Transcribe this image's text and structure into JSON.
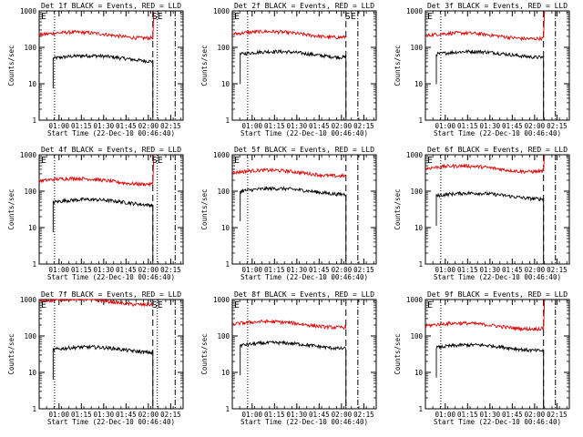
{
  "figure": {
    "ylabel": "Counts/sec",
    "xlabel": "Start Time (22-Dec-10 00:46:40)",
    "x_tick_labels": [
      "01:00",
      "01:15",
      "01:30",
      "01:45",
      "02:00",
      "02:15"
    ],
    "y_tick_labels": [
      "1",
      "10",
      "100",
      "1000"
    ],
    "colors": {
      "events": "#000000",
      "lld": "#e00000"
    }
  },
  "chart_data": [
    {
      "type": "line",
      "title": "Det 1f BLACK = Events, RED = LLD",
      "marker_left": "E",
      "marker_right": "SE",
      "y_scale": "log",
      "ylim": [
        1,
        1000
      ],
      "xlim": [
        "00:46:40",
        "02:23:20"
      ],
      "x_ticks": [
        "01:00",
        "01:15",
        "01:30",
        "01:45",
        "02:00",
        "02:15"
      ],
      "series": [
        {
          "name": "Events",
          "color": "#000000",
          "start": "00:56",
          "end": "02:03",
          "level": 50
        },
        {
          "name": "LLD",
          "color": "#e00000",
          "start": "00:46:40",
          "end": "02:03",
          "level": 220,
          "rise_to": 1000
        }
      ],
      "dotted_lines": [
        "00:57",
        "02:06"
      ],
      "dashed_lines": [
        "02:03",
        "02:18"
      ]
    },
    {
      "type": "line",
      "title": "Det 2f BLACK = Events, RED = LLD",
      "marker_left": "E",
      "marker_right": "SE",
      "y_scale": "log",
      "ylim": [
        1,
        1000
      ],
      "xlim": [
        "00:46:40",
        "02:23:20"
      ],
      "x_ticks": [
        "01:00",
        "01:15",
        "01:30",
        "01:45",
        "02:00",
        "02:15"
      ],
      "series": [
        {
          "name": "Events",
          "color": "#000000",
          "start": "00:52",
          "end": "02:03",
          "level": 65
        },
        {
          "name": "LLD",
          "color": "#e00000",
          "start": "00:46:40",
          "end": "02:03",
          "level": 230
        }
      ],
      "dotted_lines": [
        "00:57"
      ],
      "dashed_lines": [
        "02:03",
        "02:11"
      ]
    },
    {
      "type": "line",
      "title": "Det 3f BLACK = Events, RED = LLD",
      "marker_left": "E",
      "marker_right": "",
      "y_scale": "log",
      "ylim": [
        1,
        1000
      ],
      "xlim": [
        "00:46:40",
        "02:23:20"
      ],
      "x_ticks": [
        "01:00",
        "01:15",
        "01:30",
        "01:45",
        "02:00",
        "02:15"
      ],
      "series": [
        {
          "name": "Events",
          "color": "#000000",
          "start": "00:54",
          "end": "02:06",
          "level": 65
        },
        {
          "name": "LLD",
          "color": "#e00000",
          "start": "00:46:40",
          "end": "02:06",
          "level": 210,
          "rise_to": 1000
        }
      ],
      "dotted_lines": [
        "00:57"
      ],
      "dashed_lines": [
        "02:06",
        "02:14"
      ]
    },
    {
      "type": "line",
      "title": "Det 4f BLACK = Events, RED = LLD",
      "marker_left": "E",
      "marker_right": "SE",
      "y_scale": "log",
      "ylim": [
        1,
        1000
      ],
      "xlim": [
        "00:46:40",
        "02:23:20"
      ],
      "x_ticks": [
        "01:00",
        "01:15",
        "01:30",
        "01:45",
        "02:00",
        "02:15"
      ],
      "series": [
        {
          "name": "Events",
          "color": "#000000",
          "start": "00:56",
          "end": "02:03",
          "level": 50
        },
        {
          "name": "LLD",
          "color": "#e00000",
          "start": "00:46:40",
          "end": "02:03",
          "level": 190,
          "rise_to": 1000
        }
      ],
      "dotted_lines": [
        "00:57",
        "02:06"
      ],
      "dashed_lines": [
        "02:03",
        "02:18"
      ]
    },
    {
      "type": "line",
      "title": "Det 5f BLACK = Events, RED = LLD",
      "marker_left": "E",
      "marker_right": "",
      "y_scale": "log",
      "ylim": [
        1,
        1000
      ],
      "xlim": [
        "00:46:40",
        "02:23:20"
      ],
      "x_ticks": [
        "01:00",
        "01:15",
        "01:30",
        "01:45",
        "02:00",
        "02:15"
      ],
      "series": [
        {
          "name": "Events",
          "color": "#000000",
          "start": "00:52",
          "end": "02:03",
          "level": 100
        },
        {
          "name": "LLD",
          "color": "#e00000",
          "start": "00:46:40",
          "end": "02:03",
          "level": 320
        }
      ],
      "dotted_lines": [
        "00:57"
      ],
      "dashed_lines": [
        "02:03",
        "02:11"
      ]
    },
    {
      "type": "line",
      "title": "Det 6f BLACK = Events, RED = LLD",
      "marker_left": "E",
      "marker_right": "",
      "y_scale": "log",
      "ylim": [
        1,
        1000
      ],
      "xlim": [
        "00:46:40",
        "02:23:20"
      ],
      "x_ticks": [
        "01:00",
        "01:15",
        "01:30",
        "01:45",
        "02:00",
        "02:15"
      ],
      "series": [
        {
          "name": "Events",
          "color": "#000000",
          "start": "00:54",
          "end": "02:06",
          "level": 75
        },
        {
          "name": "LLD",
          "color": "#e00000",
          "start": "00:46:40",
          "end": "02:06",
          "level": 420,
          "rise_to": 1000
        }
      ],
      "dotted_lines": [
        "00:57"
      ],
      "dashed_lines": [
        "02:06",
        "02:14"
      ]
    },
    {
      "type": "line",
      "title": "Det 7f BLACK = Events, RED = LLD",
      "marker_left": "E",
      "marker_right": "SE",
      "y_scale": "log",
      "ylim": [
        1,
        1000
      ],
      "xlim": [
        "00:46:40",
        "02:23:20"
      ],
      "x_ticks": [
        "01:00",
        "01:15",
        "01:30",
        "01:45",
        "02:00",
        "02:15"
      ],
      "series": [
        {
          "name": "Events",
          "color": "#000000",
          "start": "00:56",
          "end": "02:03",
          "level": 42
        },
        {
          "name": "LLD",
          "color": "#e00000",
          "start": "00:46:40",
          "end": "02:03",
          "level": 880
        }
      ],
      "dotted_lines": [
        "00:57",
        "02:06"
      ],
      "dashed_lines": [
        "02:03",
        "02:18"
      ]
    },
    {
      "type": "line",
      "title": "Det 8f BLACK = Events, RED = LLD",
      "marker_left": "E",
      "marker_right": "",
      "y_scale": "log",
      "ylim": [
        1,
        1000
      ],
      "xlim": [
        "00:46:40",
        "02:23:20"
      ],
      "x_ticks": [
        "01:00",
        "01:15",
        "01:30",
        "01:45",
        "02:00",
        "02:15"
      ],
      "series": [
        {
          "name": "Events",
          "color": "#000000",
          "start": "00:52",
          "end": "02:03",
          "level": 55
        },
        {
          "name": "LLD",
          "color": "#e00000",
          "start": "00:46:40",
          "end": "02:03",
          "level": 210
        }
      ],
      "dotted_lines": [
        "00:57"
      ],
      "dashed_lines": [
        "02:03",
        "02:11"
      ]
    },
    {
      "type": "line",
      "title": "Det 9f BLACK = Events, RED = LLD",
      "marker_left": "E",
      "marker_right": "",
      "y_scale": "log",
      "ylim": [
        1,
        1000
      ],
      "xlim": [
        "00:46:40",
        "02:23:20"
      ],
      "x_ticks": [
        "01:00",
        "01:15",
        "01:30",
        "01:45",
        "02:00",
        "02:15"
      ],
      "series": [
        {
          "name": "Events",
          "color": "#000000",
          "start": "00:54",
          "end": "02:06",
          "level": 48
        },
        {
          "name": "LLD",
          "color": "#e00000",
          "start": "00:46:40",
          "end": "02:06",
          "level": 190,
          "rise_to": 1000
        }
      ],
      "dotted_lines": [
        "00:57"
      ],
      "dashed_lines": [
        "02:06",
        "02:14"
      ]
    }
  ]
}
